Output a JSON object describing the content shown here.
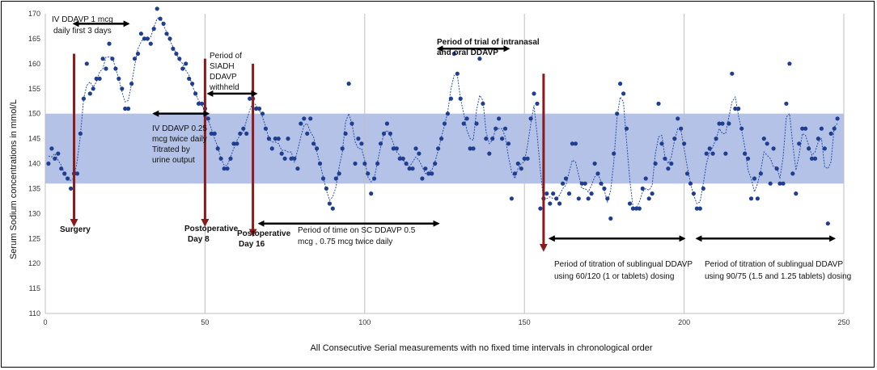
{
  "chart_data": {
    "type": "scatter",
    "title": "",
    "xlabel": "All Consecutive Serial  measurements with no fixed time intervals in chronological order",
    "ylabel": "Serum Sodium concentrations in mmol/L",
    "xlim": [
      0,
      250
    ],
    "ylim": [
      110,
      170
    ],
    "xticks": [
      0,
      50,
      100,
      150,
      200,
      250
    ],
    "yticks": [
      110,
      115,
      120,
      125,
      130,
      135,
      140,
      145,
      150,
      155,
      160,
      165,
      170
    ],
    "grid": "vertical",
    "normal_range": [
      136,
      150
    ],
    "colors": {
      "points": "#1f3e8f",
      "trend": "#2a4fa8",
      "band": "#b3c2e6",
      "arrow": "#8b1a1a"
    },
    "series": [
      {
        "name": "Serum sodium",
        "values": [
          [
            1,
            140
          ],
          [
            2,
            143
          ],
          [
            3,
            141
          ],
          [
            4,
            142
          ],
          [
            5,
            139
          ],
          [
            6,
            138
          ],
          [
            7,
            137
          ],
          [
            8,
            135
          ],
          [
            9,
            138
          ],
          [
            10,
            138
          ],
          [
            11,
            146
          ],
          [
            12,
            153
          ],
          [
            13,
            160
          ],
          [
            14,
            154
          ],
          [
            15,
            155
          ],
          [
            16,
            157
          ],
          [
            17,
            157
          ],
          [
            18,
            161
          ],
          [
            19,
            159
          ],
          [
            20,
            164
          ],
          [
            21,
            161
          ],
          [
            22,
            159
          ],
          [
            23,
            157
          ],
          [
            24,
            155
          ],
          [
            25,
            151
          ],
          [
            26,
            151
          ],
          [
            27,
            156
          ],
          [
            28,
            161
          ],
          [
            29,
            162
          ],
          [
            30,
            166
          ],
          [
            31,
            165
          ],
          [
            32,
            165
          ],
          [
            33,
            164
          ],
          [
            34,
            167
          ],
          [
            35,
            171
          ],
          [
            36,
            169
          ],
          [
            37,
            168
          ],
          [
            38,
            166
          ],
          [
            39,
            165
          ],
          [
            40,
            163
          ],
          [
            41,
            162
          ],
          [
            42,
            161
          ],
          [
            43,
            159
          ],
          [
            44,
            160
          ],
          [
            45,
            157
          ],
          [
            46,
            156
          ],
          [
            47,
            154
          ],
          [
            48,
            152
          ],
          [
            49,
            152
          ],
          [
            50,
            151
          ],
          [
            51,
            149
          ],
          [
            52,
            146
          ],
          [
            53,
            146
          ],
          [
            54,
            143
          ],
          [
            55,
            141
          ],
          [
            56,
            139
          ],
          [
            57,
            139
          ],
          [
            58,
            141
          ],
          [
            59,
            144
          ],
          [
            60,
            144
          ],
          [
            61,
            146
          ],
          [
            62,
            147
          ],
          [
            63,
            146
          ],
          [
            64,
            153
          ],
          [
            65,
            153
          ],
          [
            66,
            151
          ],
          [
            67,
            151
          ],
          [
            68,
            150
          ],
          [
            69,
            147
          ],
          [
            70,
            145
          ],
          [
            71,
            143
          ],
          [
            72,
            145
          ],
          [
            73,
            145
          ],
          [
            74,
            142
          ],
          [
            75,
            141
          ],
          [
            76,
            145
          ],
          [
            77,
            141
          ],
          [
            78,
            141
          ],
          [
            79,
            139
          ],
          [
            80,
            148
          ],
          [
            81,
            149
          ],
          [
            82,
            146
          ],
          [
            83,
            149
          ],
          [
            84,
            144
          ],
          [
            85,
            143
          ],
          [
            86,
            140
          ],
          [
            87,
            137
          ],
          [
            88,
            135
          ],
          [
            89,
            132
          ],
          [
            90,
            131
          ],
          [
            91,
            137
          ],
          [
            92,
            138
          ],
          [
            93,
            143
          ],
          [
            94,
            146
          ],
          [
            95,
            156
          ],
          [
            96,
            148
          ],
          [
            97,
            140
          ],
          [
            98,
            145
          ],
          [
            99,
            144
          ],
          [
            100,
            140
          ],
          [
            101,
            138
          ],
          [
            102,
            134
          ],
          [
            103,
            137
          ],
          [
            104,
            140
          ],
          [
            105,
            144
          ],
          [
            106,
            146
          ],
          [
            107,
            148
          ],
          [
            108,
            146
          ],
          [
            109,
            143
          ],
          [
            110,
            143
          ],
          [
            111,
            141
          ],
          [
            112,
            141
          ],
          [
            113,
            140
          ],
          [
            114,
            139
          ],
          [
            115,
            139
          ],
          [
            116,
            143
          ],
          [
            117,
            142
          ],
          [
            118,
            137
          ],
          [
            119,
            139
          ],
          [
            120,
            138
          ],
          [
            121,
            138
          ],
          [
            122,
            140
          ],
          [
            123,
            143
          ],
          [
            124,
            145
          ],
          [
            125,
            148
          ],
          [
            126,
            150
          ],
          [
            127,
            153
          ],
          [
            128,
            162
          ],
          [
            129,
            158
          ],
          [
            130,
            153
          ],
          [
            131,
            148
          ],
          [
            132,
            149
          ],
          [
            133,
            143
          ],
          [
            134,
            143
          ],
          [
            135,
            148
          ],
          [
            136,
            161
          ],
          [
            137,
            152
          ],
          [
            138,
            145
          ],
          [
            139,
            142
          ],
          [
            140,
            145
          ],
          [
            141,
            147
          ],
          [
            142,
            149
          ],
          [
            143,
            145
          ],
          [
            144,
            147
          ],
          [
            145,
            144
          ],
          [
            146,
            133
          ],
          [
            147,
            138
          ],
          [
            148,
            140
          ],
          [
            149,
            139
          ],
          [
            150,
            141
          ],
          [
            151,
            141
          ],
          [
            152,
            149
          ],
          [
            153,
            154
          ],
          [
            154,
            152
          ],
          [
            155,
            131
          ],
          [
            156,
            133
          ],
          [
            157,
            134
          ],
          [
            158,
            132
          ],
          [
            159,
            134
          ],
          [
            160,
            133
          ],
          [
            161,
            132
          ],
          [
            162,
            136
          ],
          [
            163,
            137
          ],
          [
            164,
            134
          ],
          [
            165,
            144
          ],
          [
            166,
            144
          ],
          [
            167,
            133
          ],
          [
            168,
            136
          ],
          [
            169,
            136
          ],
          [
            170,
            133
          ],
          [
            171,
            134
          ],
          [
            172,
            140
          ],
          [
            173,
            138
          ],
          [
            174,
            136
          ],
          [
            175,
            135
          ],
          [
            176,
            133
          ],
          [
            177,
            129
          ],
          [
            178,
            142
          ],
          [
            179,
            150
          ],
          [
            180,
            156
          ],
          [
            181,
            154
          ],
          [
            182,
            147
          ],
          [
            183,
            132
          ],
          [
            184,
            131
          ],
          [
            185,
            131
          ],
          [
            186,
            131
          ],
          [
            187,
            135
          ],
          [
            188,
            137
          ],
          [
            189,
            133
          ],
          [
            190,
            134
          ],
          [
            191,
            140
          ],
          [
            192,
            152
          ],
          [
            193,
            144
          ],
          [
            194,
            141
          ],
          [
            195,
            139
          ],
          [
            196,
            140
          ],
          [
            197,
            145
          ],
          [
            198,
            149
          ],
          [
            199,
            147
          ],
          [
            200,
            144
          ],
          [
            201,
            138
          ],
          [
            202,
            136
          ],
          [
            203,
            134
          ],
          [
            204,
            131
          ],
          [
            205,
            131
          ],
          [
            206,
            135
          ],
          [
            207,
            142
          ],
          [
            208,
            143
          ],
          [
            209,
            142
          ],
          [
            210,
            145
          ],
          [
            211,
            148
          ],
          [
            212,
            148
          ],
          [
            213,
            142
          ],
          [
            214,
            148
          ],
          [
            215,
            158
          ],
          [
            216,
            151
          ],
          [
            217,
            151
          ],
          [
            218,
            147
          ],
          [
            219,
            142
          ],
          [
            220,
            141
          ],
          [
            221,
            133
          ],
          [
            222,
            137
          ],
          [
            223,
            133
          ],
          [
            224,
            138
          ],
          [
            225,
            145
          ],
          [
            226,
            144
          ],
          [
            227,
            136
          ],
          [
            228,
            143
          ],
          [
            229,
            139
          ],
          [
            230,
            136
          ],
          [
            231,
            136
          ],
          [
            232,
            152
          ],
          [
            233,
            160
          ],
          [
            234,
            138
          ],
          [
            235,
            134
          ],
          [
            236,
            144
          ],
          [
            237,
            147
          ],
          [
            238,
            147
          ],
          [
            239,
            143
          ],
          [
            240,
            141
          ],
          [
            241,
            141
          ],
          [
            242,
            145
          ],
          [
            243,
            147
          ],
          [
            244,
            143
          ],
          [
            245,
            128
          ],
          [
            246,
            146
          ],
          [
            247,
            147
          ],
          [
            248,
            149
          ]
        ]
      }
    ],
    "arrows": [
      {
        "x": 9,
        "from": 162,
        "to": 127
      },
      {
        "x": 50,
        "from": 161,
        "to": 127
      },
      {
        "x": 65,
        "from": 160,
        "to": 125
      },
      {
        "x": 156,
        "from": 158,
        "to": 122
      }
    ],
    "ranges": [
      {
        "x1": 8,
        "x2": 27,
        "y": 168
      },
      {
        "x1": 33,
        "x2": 52,
        "y": 150
      },
      {
        "x1": 50,
        "x2": 67,
        "y": 154
      },
      {
        "x1": 66,
        "x2": 124,
        "y": 128
      },
      {
        "x1": 122,
        "x2": 146,
        "y": 163
      },
      {
        "x1": 157,
        "x2": 201,
        "y": 125
      },
      {
        "x1": 203,
        "x2": 248,
        "y": 125
      }
    ]
  },
  "annotations": {
    "iv_ddavp_1": [
      "IV DDAVP 1 mcg",
      "daily first 3 days"
    ],
    "iv_ddavp_025": [
      "IV DDAVP 0.25",
      "mcg  twice daily",
      "Titrated by",
      "urine output"
    ],
    "siadh": [
      "Period of",
      "SIADH",
      "DDAVP",
      "withheld"
    ],
    "surgery": "Surgery",
    "postop_day8": [
      "Postoperative",
      "Day 8"
    ],
    "postop_day16": [
      "Postoperative",
      "Day 16"
    ],
    "sc_ddavp": [
      "Period of time on SC DDAVP 0.5",
      "mcg , 0.75 mcg twice daily"
    ],
    "intranasal": [
      "Period of trial of intranasal",
      "and oral DDAVP"
    ],
    "sublingual_1": [
      "Period of titration of sublingual DDAVP",
      "using 60/120 (1 or tablets) dosing"
    ],
    "sublingual_2": [
      "Period of titration of sublingual DDAVP",
      "using 90/75 (1.5 and 1.25 tablets) dosing"
    ]
  }
}
